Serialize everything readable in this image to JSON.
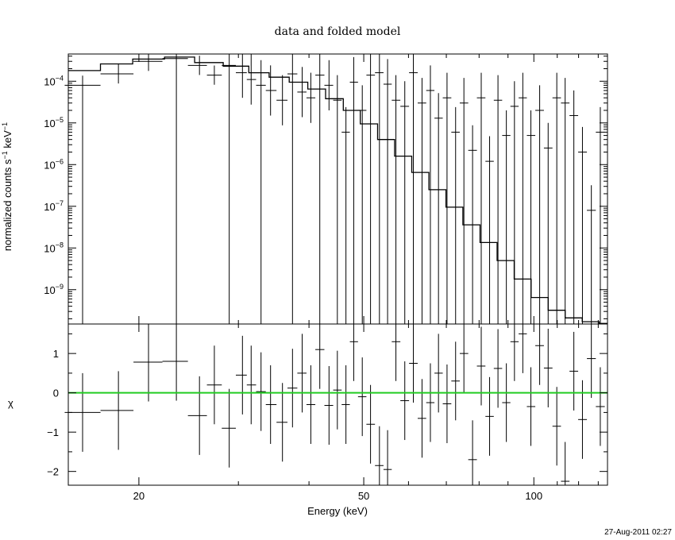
{
  "chart_data": {
    "type": "line",
    "title": "data and folded model",
    "xlabel": "Energy (keV)",
    "xscale": "log",
    "xlim": [
      15.0,
      135.0
    ],
    "grid": false,
    "timestamp": "27-Aug-2011 02:27",
    "top_panel": {
      "ylabel": "normalized counts s^-1 keV^-1",
      "ylabel_main": "normalized counts s",
      "ylabel_sup1": "−1",
      "ylabel_mid": " keV",
      "ylabel_sup2": "−1",
      "yscale": "log",
      "ylim": [
        1.5e-10,
        0.00045
      ],
      "ytick_labels": [
        {
          "mant": "10",
          "exp": "−4"
        },
        {
          "mant": "10",
          "exp": "−5"
        },
        {
          "mant": "10",
          "exp": "−6"
        },
        {
          "mant": "10",
          "exp": "−7"
        },
        {
          "mant": "10",
          "exp": "−8"
        },
        {
          "mant": "10",
          "exp": "−9"
        }
      ],
      "series": [
        {
          "kind": "data_points",
          "x": [
            15.9,
            18.4,
            20.8,
            23.3,
            25.6,
            27.2,
            28.9,
            30.5,
            31.6,
            32.9,
            34.2,
            35.9,
            37.4,
            38.9,
            40.3,
            41.8,
            43.4,
            44.9,
            46.5,
            48.0,
            49.7,
            51.4,
            53.3,
            55.1,
            57.0,
            59.1,
            61.2,
            63.4,
            65.6,
            67.8,
            70.2,
            72.7,
            75.2,
            77.9,
            80.7,
            83.5,
            86.4,
            89.4,
            92.4,
            95.6,
            98.8,
            102.4,
            106.0,
            109.8,
            113.6,
            117.7,
            121.9,
            126.4,
            131.1
          ],
          "y": [
            8e-05,
            0.00015,
            0.0003,
            0.00035,
            0.00024,
            0.00014,
            0.00024,
            0.00016,
            0.00011,
            8e-05,
            6e-05,
            3.5e-05,
            0.00015,
            5.5e-05,
            4e-05,
            0.00014,
            8e-05,
            3.5e-05,
            6e-06,
            9.5e-05,
            2e-05,
            0.00014,
            0.00016,
            8.5e-05,
            3.5e-05,
            2.5e-05,
            0.00016,
            3e-05,
            6e-05,
            1.3e-05,
            4e-05,
            6e-06,
            3e-05,
            2.2e-06,
            4e-05,
            1.2e-06,
            3.5e-05,
            5e-06,
            2.5e-05,
            4e-05,
            5e-06,
            2e-05,
            2.5e-06,
            4e-05,
            3e-05,
            1.5e-05,
            2e-06,
            8e-08,
            6e-06
          ]
        },
        {
          "kind": "folded_model_step",
          "edges": [
            15.0,
            17.1,
            19.5,
            22.2,
            25.1,
            28.2,
            31.3,
            34.0,
            36.9,
            39.8,
            42.8,
            46.0,
            49.3,
            52.9,
            56.7,
            60.8,
            65.2,
            69.9,
            74.9,
            80.3,
            86.1,
            92.3,
            98.9,
            106.0,
            113.6,
            121.8,
            130.5,
            135.0
          ],
          "values": [
            0.00018,
            0.00026,
            0.00034,
            0.00038,
            0.00028,
            0.00023,
            0.00016,
            0.000125,
            9.5e-05,
            6.5e-05,
            3.8e-05,
            2e-05,
            9.5e-06,
            4e-06,
            1.6e-06,
            6.5e-07,
            2.5e-07,
            9.5e-08,
            3.6e-08,
            1.35e-08,
            5e-09,
            1.8e-09,
            6.5e-10,
            3.2e-10,
            2.1e-10,
            1.7e-10,
            1.55e-10
          ]
        }
      ]
    },
    "bottom_panel": {
      "ylabel": "χ",
      "ylim": [
        -2.35,
        1.75
      ],
      "ytick_labels": [
        "1",
        "0",
        "−1",
        "−2"
      ],
      "zero_line_color": "#22cc22",
      "series": [
        {
          "kind": "residuals",
          "x": [
            15.9,
            18.4,
            20.8,
            23.3,
            25.6,
            27.2,
            28.9,
            30.5,
            31.6,
            32.9,
            34.2,
            35.9,
            37.4,
            38.9,
            40.3,
            41.8,
            43.4,
            44.9,
            46.5,
            48.0,
            49.7,
            51.4,
            53.3,
            55.1,
            57.0,
            59.1,
            61.2,
            63.4,
            65.6,
            67.8,
            70.2,
            72.7,
            75.2,
            77.9,
            80.7,
            83.5,
            86.4,
            89.4,
            92.4,
            95.6,
            98.8,
            102.4,
            106.0,
            109.8,
            113.6,
            117.7,
            121.9,
            126.4,
            131.1
          ],
          "y": [
            -0.5,
            -0.45,
            0.78,
            0.8,
            -0.58,
            0.2,
            -0.9,
            0.45,
            0.2,
            0.03,
            -0.3,
            -0.75,
            0.12,
            0.5,
            -0.3,
            1.1,
            -0.32,
            0.07,
            -0.3,
            1.3,
            -0.1,
            -0.8,
            -1.85,
            -1.95,
            1.3,
            -0.2,
            0.75,
            -0.65,
            -0.25,
            0.5,
            -0.28,
            0.3,
            1.0,
            -1.7,
            0.68,
            -0.6,
            0.62,
            -0.25,
            1.3,
            1.5,
            -0.35,
            1.2,
            0.63,
            -0.85,
            -2.25,
            0.55,
            -0.68,
            0.87,
            -0.35
          ]
        }
      ]
    }
  }
}
